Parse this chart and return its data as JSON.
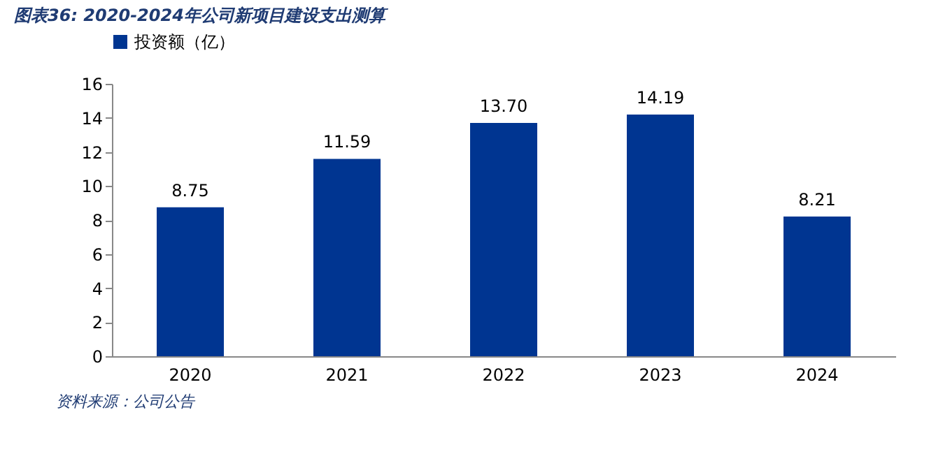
{
  "chart_data": {
    "type": "bar",
    "title": "图表36:  2020-2024年公司新项目建设支出测算",
    "categories": [
      "2020",
      "2021",
      "2022",
      "2023",
      "2024"
    ],
    "series": [
      {
        "name": "投资额（亿）",
        "color": "#003591",
        "values": [
          8.75,
          11.59,
          13.7,
          14.19,
          8.21
        ]
      }
    ],
    "value_labels": [
      "8.75",
      "11.59",
      "13.70",
      "14.19",
      "8.21"
    ],
    "ylim": [
      0,
      16
    ],
    "yticks": [
      0,
      2,
      4,
      6,
      8,
      10,
      12,
      14,
      16
    ],
    "grid": false,
    "legend": "top",
    "annotations": [
      "资料来源：公司公告"
    ]
  }
}
